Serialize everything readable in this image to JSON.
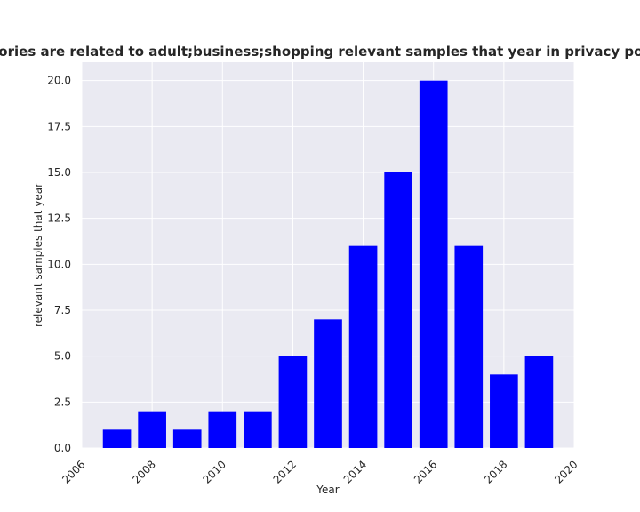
{
  "chart_data": {
    "type": "bar",
    "title": "categories are related to adult;business;shopping relevant samples that year in privacy policies",
    "xlabel": "Year",
    "ylabel": "relevant samples that year",
    "x": [
      2007,
      2008,
      2009,
      2010,
      2011,
      2012,
      2013,
      2014,
      2015,
      2016,
      2017,
      2018,
      2019
    ],
    "values": [
      1,
      2,
      1,
      2,
      2,
      5,
      7,
      11,
      15,
      20,
      11,
      4,
      5
    ],
    "xlim": [
      2006,
      2020
    ],
    "ylim": [
      0,
      21
    ],
    "xticks": [
      "2006",
      "2008",
      "2010",
      "2012",
      "2014",
      "2016",
      "2018",
      "2020"
    ],
    "yticks": [
      "0.0",
      "2.5",
      "5.0",
      "7.5",
      "10.0",
      "12.5",
      "15.0",
      "17.5",
      "20.0"
    ],
    "grid": true,
    "colors": {
      "bar": "#0000ff",
      "plot_bg": "#eaeaf2",
      "grid": "#ffffff"
    }
  }
}
